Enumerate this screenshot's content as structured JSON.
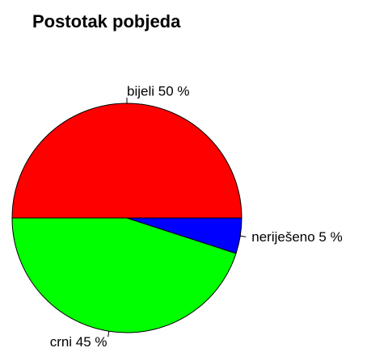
{
  "chart_data": {
    "type": "pie",
    "title": "Postotak pobjeda",
    "labels": [
      "bijeli 50 %",
      "crni 45 %",
      "neriješeno 5 %"
    ],
    "values": [
      50,
      45,
      5
    ],
    "colors": [
      "#ff0000",
      "#00ff00",
      "#0000ff"
    ]
  }
}
